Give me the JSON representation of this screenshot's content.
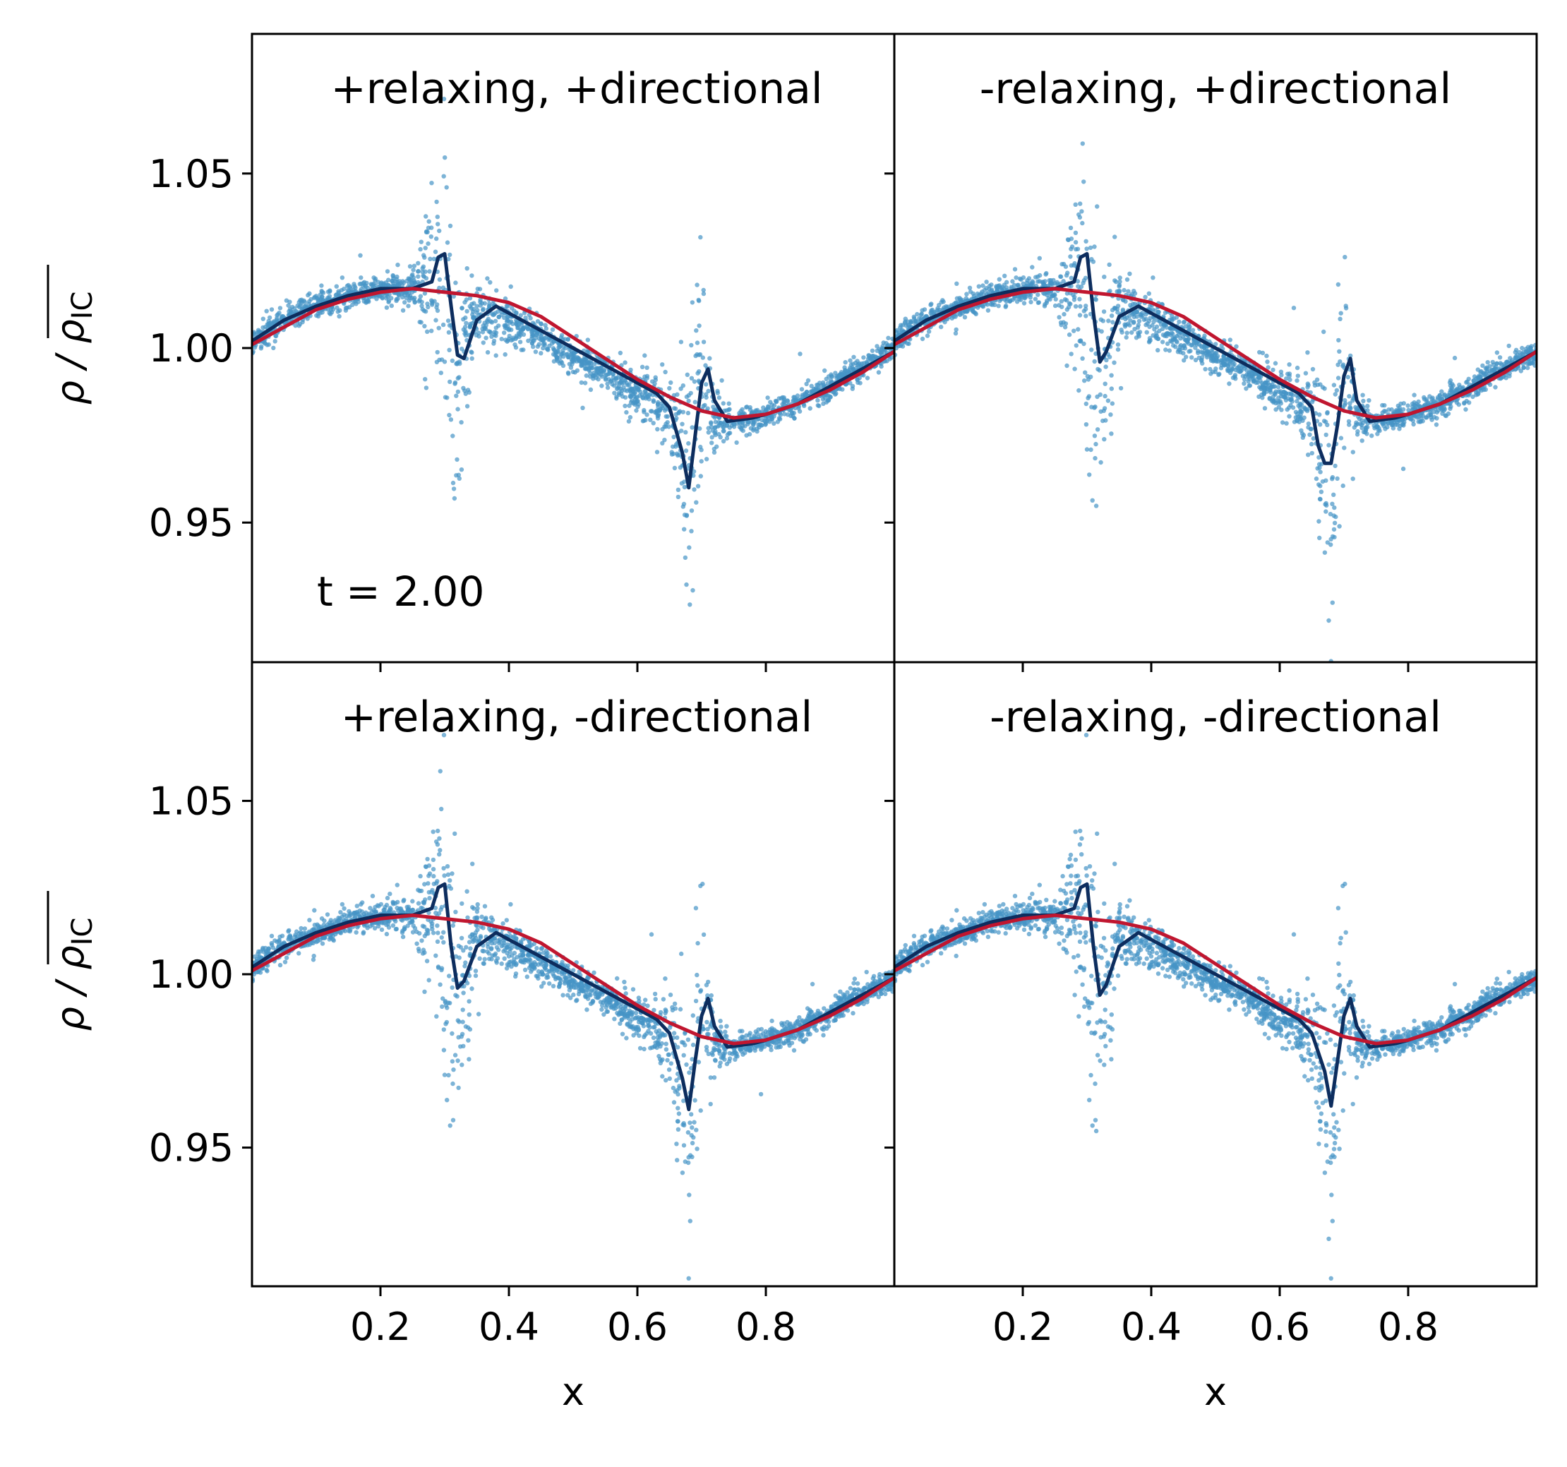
{
  "figure": {
    "ylabel": "ρ / ρ_IC",
    "xlabel": "x",
    "annotation": "t = 2.00"
  },
  "colors": {
    "scatter": "#4694c6",
    "dark_line": "#0d2d5e",
    "red_line": "#c0162f",
    "frame": "#000000"
  },
  "chart_data": [
    {
      "type": "scatter",
      "title": "+relaxing, +directional",
      "xlim": [
        0,
        1
      ],
      "ylim": [
        0.91,
        1.09
      ],
      "xticks": [
        "0.2",
        "0.4",
        "0.6",
        "0.8"
      ],
      "yticks": [
        "1.05",
        "1.00",
        "0.95"
      ],
      "grid": false,
      "annotation": "t = 2.00",
      "series": [
        {
          "kind": "scatter",
          "description_values": {
            "x": [
              0.0,
              0.05,
              0.1,
              0.15,
              0.2,
              0.25,
              0.28,
              0.3,
              0.32,
              0.35,
              0.4,
              0.45,
              0.5,
              0.55,
              0.6,
              0.65,
              0.68,
              0.7,
              0.72,
              0.75,
              0.8,
              0.85,
              0.9,
              0.95,
              1.0
            ],
            "y": [
              1.002,
              1.008,
              1.012,
              1.015,
              1.017,
              1.017,
              1.02,
              1.005,
              0.995,
              1.01,
              1.008,
              1.003,
              0.998,
              0.993,
              0.987,
              0.982,
              0.965,
              0.99,
              0.98,
              0.979,
              0.981,
              0.984,
              0.989,
              0.994,
              1.0
            ],
            "spread": [
              0.003,
              0.003,
              0.003,
              0.003,
              0.003,
              0.004,
              0.02,
              0.045,
              0.025,
              0.008,
              0.005,
              0.004,
              0.004,
              0.004,
              0.005,
              0.008,
              0.03,
              0.03,
              0.006,
              0.003,
              0.003,
              0.003,
              0.003,
              0.003,
              0.003
            ]
          }
        },
        {
          "kind": "line",
          "color_key": "dark_line",
          "x": [
            0.0,
            0.05,
            0.1,
            0.15,
            0.2,
            0.25,
            0.28,
            0.29,
            0.3,
            0.31,
            0.32,
            0.33,
            0.35,
            0.38,
            0.4,
            0.45,
            0.5,
            0.55,
            0.6,
            0.63,
            0.65,
            0.67,
            0.68,
            0.69,
            0.7,
            0.71,
            0.72,
            0.74,
            0.78,
            0.8,
            0.85,
            0.9,
            0.95,
            1.0
          ],
          "y": [
            1.002,
            1.008,
            1.012,
            1.015,
            1.017,
            1.017,
            1.019,
            1.026,
            1.027,
            1.012,
            0.998,
            0.997,
            1.008,
            1.012,
            1.01,
            1.005,
            1.0,
            0.995,
            0.99,
            0.987,
            0.983,
            0.97,
            0.96,
            0.975,
            0.99,
            0.994,
            0.985,
            0.979,
            0.98,
            0.981,
            0.984,
            0.989,
            0.994,
            0.999
          ]
        },
        {
          "kind": "line",
          "color_key": "red_line",
          "x": [
            0.0,
            0.05,
            0.1,
            0.15,
            0.2,
            0.25,
            0.3,
            0.35,
            0.4,
            0.45,
            0.5,
            0.55,
            0.6,
            0.65,
            0.7,
            0.75,
            0.8,
            0.85,
            0.9,
            0.95,
            1.0
          ],
          "y": [
            1.001,
            1.006,
            1.011,
            1.014,
            1.016,
            1.017,
            1.016,
            1.015,
            1.013,
            1.009,
            1.003,
            0.997,
            0.991,
            0.986,
            0.982,
            0.98,
            0.981,
            0.984,
            0.988,
            0.993,
            0.999
          ]
        }
      ]
    },
    {
      "type": "scatter",
      "title": "-relaxing, +directional",
      "xlim": [
        0,
        1
      ],
      "ylim": [
        0.91,
        1.09
      ],
      "xticks": [
        "0.2",
        "0.4",
        "0.6",
        "0.8"
      ],
      "yticks": [
        "1.05",
        "1.00",
        "0.95"
      ],
      "grid": false,
      "series": [
        {
          "kind": "scatter",
          "description_values": {
            "x": [
              0.0,
              0.05,
              0.1,
              0.15,
              0.2,
              0.25,
              0.28,
              0.3,
              0.32,
              0.35,
              0.4,
              0.45,
              0.5,
              0.55,
              0.6,
              0.65,
              0.68,
              0.7,
              0.72,
              0.75,
              0.8,
              0.85,
              0.9,
              0.95,
              1.0
            ],
            "y": [
              1.002,
              1.008,
              1.012,
              1.015,
              1.017,
              1.017,
              1.02,
              1.01,
              0.99,
              1.012,
              1.008,
              1.003,
              0.998,
              0.993,
              0.987,
              0.982,
              0.96,
              0.99,
              0.98,
              0.979,
              0.981,
              0.984,
              0.989,
              0.994,
              0.999
            ],
            "spread": [
              0.003,
              0.003,
              0.003,
              0.003,
              0.003,
              0.004,
              0.02,
              0.04,
              0.03,
              0.008,
              0.005,
              0.004,
              0.004,
              0.004,
              0.005,
              0.01,
              0.035,
              0.025,
              0.006,
              0.003,
              0.003,
              0.003,
              0.003,
              0.003,
              0.003
            ]
          }
        },
        {
          "kind": "line",
          "color_key": "dark_line",
          "x": [
            0.0,
            0.05,
            0.1,
            0.15,
            0.2,
            0.25,
            0.28,
            0.29,
            0.3,
            0.31,
            0.32,
            0.33,
            0.35,
            0.38,
            0.4,
            0.45,
            0.5,
            0.55,
            0.6,
            0.63,
            0.65,
            0.66,
            0.67,
            0.68,
            0.69,
            0.7,
            0.71,
            0.72,
            0.74,
            0.78,
            0.8,
            0.85,
            0.9,
            0.95,
            1.0
          ],
          "y": [
            1.002,
            1.008,
            1.012,
            1.015,
            1.017,
            1.017,
            1.019,
            1.026,
            1.027,
            1.01,
            0.996,
            0.999,
            1.009,
            1.012,
            1.01,
            1.005,
            1.0,
            0.995,
            0.99,
            0.987,
            0.983,
            0.972,
            0.967,
            0.967,
            0.978,
            0.992,
            0.997,
            0.985,
            0.979,
            0.98,
            0.981,
            0.984,
            0.989,
            0.994,
            0.999
          ]
        },
        {
          "kind": "line",
          "color_key": "red_line",
          "x": [
            0.0,
            0.05,
            0.1,
            0.15,
            0.2,
            0.25,
            0.3,
            0.35,
            0.4,
            0.45,
            0.5,
            0.55,
            0.6,
            0.65,
            0.7,
            0.75,
            0.8,
            0.85,
            0.9,
            0.95,
            1.0
          ],
          "y": [
            1.001,
            1.006,
            1.011,
            1.014,
            1.016,
            1.017,
            1.016,
            1.015,
            1.013,
            1.009,
            1.003,
            0.997,
            0.991,
            0.986,
            0.982,
            0.98,
            0.981,
            0.984,
            0.988,
            0.993,
            0.999
          ]
        }
      ]
    },
    {
      "type": "scatter",
      "title": "+relaxing, -directional",
      "xlim": [
        0,
        1
      ],
      "ylim": [
        0.91,
        1.09
      ],
      "xticks": [
        "0.2",
        "0.4",
        "0.6",
        "0.8"
      ],
      "yticks": [
        "1.05",
        "1.00",
        "0.95"
      ],
      "grid": false,
      "series": [
        {
          "kind": "scatter",
          "description_values": {
            "x": [
              0.0,
              0.05,
              0.1,
              0.15,
              0.2,
              0.25,
              0.28,
              0.3,
              0.32,
              0.35,
              0.4,
              0.45,
              0.5,
              0.55,
              0.6,
              0.65,
              0.68,
              0.7,
              0.72,
              0.75,
              0.8,
              0.85,
              0.9,
              0.95,
              1.0
            ],
            "y": [
              1.002,
              1.008,
              1.012,
              1.015,
              1.017,
              1.017,
              1.02,
              1.01,
              0.99,
              1.012,
              1.008,
              1.003,
              0.998,
              0.993,
              0.987,
              0.982,
              0.962,
              0.99,
              0.98,
              0.979,
              0.981,
              0.984,
              0.989,
              0.994,
              0.999
            ],
            "spread": [
              0.003,
              0.003,
              0.003,
              0.003,
              0.003,
              0.004,
              0.02,
              0.04,
              0.03,
              0.008,
              0.005,
              0.004,
              0.004,
              0.004,
              0.005,
              0.01,
              0.035,
              0.025,
              0.006,
              0.003,
              0.003,
              0.003,
              0.003,
              0.003,
              0.003
            ]
          }
        },
        {
          "kind": "line",
          "color_key": "dark_line",
          "x": [
            0.0,
            0.05,
            0.1,
            0.15,
            0.2,
            0.25,
            0.28,
            0.29,
            0.3,
            0.31,
            0.32,
            0.33,
            0.35,
            0.38,
            0.4,
            0.45,
            0.5,
            0.55,
            0.6,
            0.63,
            0.65,
            0.67,
            0.68,
            0.69,
            0.7,
            0.71,
            0.72,
            0.74,
            0.78,
            0.8,
            0.85,
            0.9,
            0.95,
            1.0
          ],
          "y": [
            1.002,
            1.008,
            1.012,
            1.015,
            1.017,
            1.017,
            1.019,
            1.025,
            1.026,
            1.008,
            0.996,
            0.998,
            1.008,
            1.012,
            1.01,
            1.005,
            1.0,
            0.995,
            0.99,
            0.987,
            0.983,
            0.97,
            0.961,
            0.975,
            0.988,
            0.993,
            0.985,
            0.979,
            0.98,
            0.981,
            0.984,
            0.989,
            0.994,
            0.999
          ]
        },
        {
          "kind": "line",
          "color_key": "red_line",
          "x": [
            0.0,
            0.05,
            0.1,
            0.15,
            0.2,
            0.25,
            0.3,
            0.35,
            0.4,
            0.45,
            0.5,
            0.55,
            0.6,
            0.65,
            0.7,
            0.75,
            0.8,
            0.85,
            0.9,
            0.95,
            1.0
          ],
          "y": [
            1.001,
            1.006,
            1.011,
            1.014,
            1.016,
            1.017,
            1.016,
            1.015,
            1.013,
            1.009,
            1.003,
            0.997,
            0.991,
            0.986,
            0.982,
            0.98,
            0.981,
            0.984,
            0.988,
            0.993,
            0.999
          ]
        }
      ]
    },
    {
      "type": "scatter",
      "title": "-relaxing, -directional",
      "xlim": [
        0,
        1
      ],
      "ylim": [
        0.91,
        1.09
      ],
      "xticks": [
        "0.2",
        "0.4",
        "0.6",
        "0.8"
      ],
      "yticks": [
        "1.05",
        "1.00",
        "0.95"
      ],
      "grid": false,
      "series": [
        {
          "kind": "scatter",
          "description_values": {
            "x": [
              0.0,
              0.05,
              0.1,
              0.15,
              0.2,
              0.25,
              0.28,
              0.3,
              0.32,
              0.35,
              0.4,
              0.45,
              0.5,
              0.55,
              0.6,
              0.65,
              0.68,
              0.7,
              0.72,
              0.75,
              0.8,
              0.85,
              0.9,
              0.95,
              1.0
            ],
            "y": [
              1.002,
              1.008,
              1.012,
              1.015,
              1.017,
              1.017,
              1.02,
              1.01,
              0.99,
              1.012,
              1.008,
              1.003,
              0.998,
              0.993,
              0.987,
              0.982,
              0.962,
              0.99,
              0.98,
              0.979,
              0.981,
              0.984,
              0.989,
              0.994,
              0.999
            ],
            "spread": [
              0.003,
              0.003,
              0.003,
              0.003,
              0.003,
              0.004,
              0.02,
              0.04,
              0.03,
              0.008,
              0.005,
              0.004,
              0.004,
              0.004,
              0.005,
              0.01,
              0.035,
              0.025,
              0.006,
              0.003,
              0.003,
              0.003,
              0.003,
              0.003,
              0.003
            ]
          }
        },
        {
          "kind": "line",
          "color_key": "dark_line",
          "x": [
            0.0,
            0.05,
            0.1,
            0.15,
            0.2,
            0.25,
            0.28,
            0.29,
            0.3,
            0.31,
            0.32,
            0.33,
            0.35,
            0.38,
            0.4,
            0.45,
            0.5,
            0.55,
            0.6,
            0.63,
            0.65,
            0.67,
            0.68,
            0.69,
            0.7,
            0.71,
            0.72,
            0.74,
            0.78,
            0.8,
            0.85,
            0.9,
            0.95,
            1.0
          ],
          "y": [
            1.002,
            1.008,
            1.012,
            1.015,
            1.017,
            1.017,
            1.019,
            1.025,
            1.026,
            1.008,
            0.994,
            0.997,
            1.008,
            1.012,
            1.01,
            1.005,
            1.0,
            0.995,
            0.99,
            0.987,
            0.983,
            0.972,
            0.962,
            0.975,
            0.988,
            0.993,
            0.985,
            0.979,
            0.98,
            0.981,
            0.984,
            0.989,
            0.994,
            0.999
          ]
        },
        {
          "kind": "line",
          "color_key": "red_line",
          "x": [
            0.0,
            0.05,
            0.1,
            0.15,
            0.2,
            0.25,
            0.3,
            0.35,
            0.4,
            0.45,
            0.5,
            0.55,
            0.6,
            0.65,
            0.7,
            0.75,
            0.8,
            0.85,
            0.9,
            0.95,
            1.0
          ],
          "y": [
            1.001,
            1.006,
            1.011,
            1.014,
            1.016,
            1.017,
            1.016,
            1.015,
            1.013,
            1.009,
            1.003,
            0.997,
            0.991,
            0.986,
            0.982,
            0.98,
            0.981,
            0.984,
            0.988,
            0.993,
            0.999
          ]
        }
      ]
    }
  ]
}
